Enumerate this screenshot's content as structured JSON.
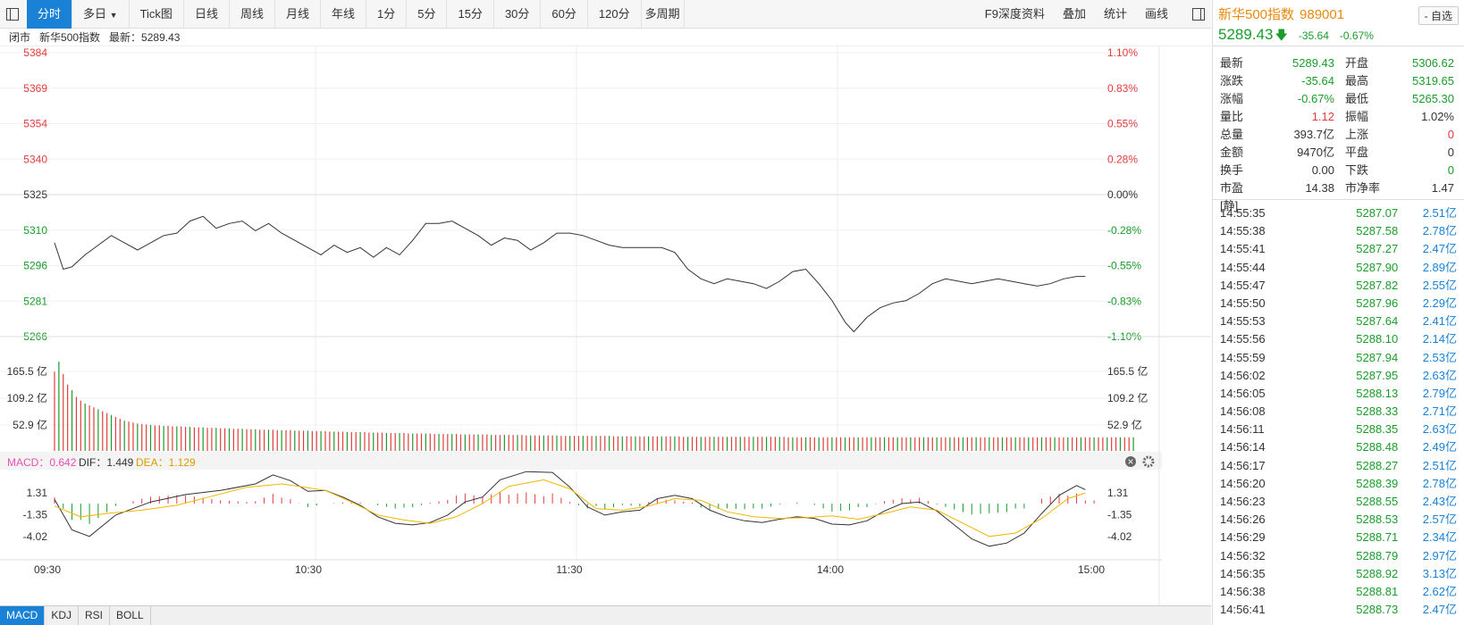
{
  "toolbar": {
    "tabs": [
      "分时",
      "多日",
      "Tick图",
      "日线",
      "周线",
      "月线",
      "年线",
      "1分",
      "5分",
      "15分",
      "30分",
      "60分",
      "120分",
      "多周期"
    ],
    "active_tab": "分时",
    "duori_arrow": "▼",
    "right_items": [
      "F9深度资料",
      "叠加",
      "统计",
      "画线"
    ]
  },
  "infobar": {
    "status": "闭市",
    "name": "新华500指数",
    "latest": "最新：5289.43"
  },
  "quote": {
    "name": "新华500指数",
    "code": "989001",
    "price": "5289.43",
    "arrow": "🡇",
    "change": "-35.64",
    "change_pct": "-0.67%",
    "add_button": "- 自选",
    "rows": [
      {
        "l1": "最新",
        "v1": "5289.43",
        "c1": "dn",
        "l2": "开盘",
        "v2": "5306.62",
        "c2": "dn"
      },
      {
        "l1": "涨跌",
        "v1": "-35.64",
        "c1": "dn",
        "l2": "最高",
        "v2": "5319.65",
        "c2": "dn"
      },
      {
        "l1": "涨幅",
        "v1": "-0.67%",
        "c1": "dn",
        "l2": "最低",
        "v2": "5265.30",
        "c2": "dn"
      },
      {
        "l1": "量比",
        "v1": "1.12",
        "c1": "up",
        "l2": "振幅",
        "v2": "1.02%",
        "c2": ""
      },
      {
        "l1": "总量",
        "v1": "393.7亿",
        "c1": "",
        "l2": "上涨",
        "v2": "0",
        "c2": "up"
      },
      {
        "l1": "金额",
        "v1": "9470亿",
        "c1": "",
        "l2": "平盘",
        "v2": "0",
        "c2": ""
      },
      {
        "l1": "换手",
        "v1": "0.00",
        "c1": "",
        "l2": "下跌",
        "v2": "0",
        "c2": "dn"
      },
      {
        "l1": "市盈[静]",
        "v1": "14.38",
        "c1": "",
        "l2": "市净率",
        "v2": "1.47",
        "c2": ""
      }
    ]
  },
  "ticks": [
    {
      "t": "14:55:35",
      "p": "5287.07",
      "v": "2.51亿"
    },
    {
      "t": "14:55:38",
      "p": "5287.58",
      "v": "2.78亿"
    },
    {
      "t": "14:55:41",
      "p": "5287.27",
      "v": "2.47亿"
    },
    {
      "t": "14:55:44",
      "p": "5287.90",
      "v": "2.89亿"
    },
    {
      "t": "14:55:47",
      "p": "5287.82",
      "v": "2.55亿"
    },
    {
      "t": "14:55:50",
      "p": "5287.96",
      "v": "2.29亿"
    },
    {
      "t": "14:55:53",
      "p": "5287.64",
      "v": "2.41亿"
    },
    {
      "t": "14:55:56",
      "p": "5288.10",
      "v": "2.14亿"
    },
    {
      "t": "14:55:59",
      "p": "5287.94",
      "v": "2.53亿"
    },
    {
      "t": "14:56:02",
      "p": "5287.95",
      "v": "2.63亿"
    },
    {
      "t": "14:56:05",
      "p": "5288.13",
      "v": "2.79亿"
    },
    {
      "t": "14:56:08",
      "p": "5288.33",
      "v": "2.71亿"
    },
    {
      "t": "14:56:11",
      "p": "5288.35",
      "v": "2.63亿"
    },
    {
      "t": "14:56:14",
      "p": "5288.48",
      "v": "2.49亿"
    },
    {
      "t": "14:56:17",
      "p": "5288.27",
      "v": "2.51亿"
    },
    {
      "t": "14:56:20",
      "p": "5288.39",
      "v": "2.78亿"
    },
    {
      "t": "14:56:23",
      "p": "5288.55",
      "v": "2.43亿"
    },
    {
      "t": "14:56:26",
      "p": "5288.53",
      "v": "2.57亿"
    },
    {
      "t": "14:56:29",
      "p": "5288.71",
      "v": "2.34亿"
    },
    {
      "t": "14:56:32",
      "p": "5288.79",
      "v": "2.97亿"
    },
    {
      "t": "14:56:35",
      "p": "5288.92",
      "v": "3.13亿"
    },
    {
      "t": "14:56:38",
      "p": "5288.81",
      "v": "2.62亿"
    },
    {
      "t": "14:56:41",
      "p": "5288.73",
      "v": "2.47亿"
    }
  ],
  "chart_data": {
    "type": "line",
    "price_ticks": [
      5384,
      5369,
      5354,
      5340,
      5325,
      5310,
      5296,
      5281,
      5266
    ],
    "pct_ticks": [
      "1.10%",
      "0.83%",
      "0.55%",
      "0.28%",
      "0.00%",
      "-0.28%",
      "-0.55%",
      "-0.83%",
      "-1.10%"
    ],
    "pct_colors": [
      "up",
      "up",
      "up",
      "up",
      "",
      "dn",
      "dn",
      "dn",
      "dn"
    ],
    "prev_close": 5325,
    "vol_ticks": [
      "165.5 亿",
      "109.2 亿",
      "52.9 亿"
    ],
    "time_labels": [
      "09:30",
      "10:30",
      "11:30",
      "14:00",
      "15:00"
    ],
    "price_points": [
      [
        0,
        5305
      ],
      [
        2,
        5294
      ],
      [
        4,
        5295
      ],
      [
        7,
        5300
      ],
      [
        10,
        5304
      ],
      [
        13,
        5308
      ],
      [
        16,
        5305
      ],
      [
        19,
        5302
      ],
      [
        22,
        5305
      ],
      [
        25,
        5308
      ],
      [
        28,
        5309
      ],
      [
        31,
        5314
      ],
      [
        34,
        5316
      ],
      [
        37,
        5311
      ],
      [
        40,
        5313
      ],
      [
        43,
        5314
      ],
      [
        46,
        5310
      ],
      [
        49,
        5313
      ],
      [
        52,
        5309
      ],
      [
        55,
        5306
      ],
      [
        58,
        5303
      ],
      [
        61,
        5300
      ],
      [
        64,
        5304
      ],
      [
        67,
        5301
      ],
      [
        70,
        5303
      ],
      [
        73,
        5299
      ],
      [
        76,
        5303
      ],
      [
        79,
        5300
      ],
      [
        82,
        5306
      ],
      [
        85,
        5313
      ],
      [
        88,
        5313
      ],
      [
        91,
        5314
      ],
      [
        94,
        5311
      ],
      [
        97,
        5308
      ],
      [
        100,
        5304
      ],
      [
        103,
        5307
      ],
      [
        106,
        5306
      ],
      [
        109,
        5302
      ],
      [
        112,
        5305
      ],
      [
        115,
        5309
      ],
      [
        118,
        5309
      ],
      [
        121,
        5308
      ],
      [
        124,
        5306
      ],
      [
        127,
        5304
      ],
      [
        130,
        5303
      ],
      [
        133,
        5303
      ],
      [
        136,
        5303
      ],
      [
        139,
        5303
      ],
      [
        142,
        5301
      ],
      [
        145,
        5294
      ],
      [
        148,
        5290
      ],
      [
        151,
        5288
      ],
      [
        154,
        5290
      ],
      [
        157,
        5289
      ],
      [
        160,
        5288
      ],
      [
        163,
        5286
      ],
      [
        166,
        5289
      ],
      [
        169,
        5293
      ],
      [
        172,
        5294
      ],
      [
        175,
        5288
      ],
      [
        178,
        5281
      ],
      [
        181,
        5272
      ],
      [
        183,
        5268
      ],
      [
        186,
        5274
      ],
      [
        189,
        5278
      ],
      [
        192,
        5280
      ],
      [
        195,
        5281
      ],
      [
        198,
        5284
      ],
      [
        201,
        5288
      ],
      [
        204,
        5290
      ],
      [
        207,
        5289
      ],
      [
        210,
        5288
      ],
      [
        213,
        5289
      ],
      [
        216,
        5290
      ],
      [
        219,
        5289
      ],
      [
        222,
        5288
      ],
      [
        225,
        5287
      ],
      [
        228,
        5288
      ],
      [
        231,
        5290
      ],
      [
        234,
        5291
      ],
      [
        236,
        5291
      ]
    ],
    "volume_values": [
      165,
      186,
      160,
      138,
      126,
      112,
      104,
      98,
      94,
      90,
      86,
      82,
      78,
      74,
      70,
      66,
      62,
      60,
      58,
      56,
      55,
      54,
      53,
      52,
      52,
      51,
      51,
      50,
      50,
      50,
      49,
      49,
      48,
      48,
      48,
      47,
      47,
      47,
      46,
      46,
      46,
      45,
      45,
      45,
      44,
      44,
      44,
      43,
      43,
      43,
      43,
      42,
      42,
      42,
      42,
      41,
      41,
      41,
      41,
      40,
      40,
      40,
      40,
      39,
      39,
      39,
      39,
      38,
      38,
      38,
      38,
      38,
      37,
      37,
      37,
      37,
      36,
      36,
      36,
      36,
      36,
      35,
      35,
      35,
      35,
      35,
      35,
      34,
      34,
      34,
      34,
      34,
      34,
      33,
      33,
      33,
      33,
      33,
      33,
      33,
      32,
      32,
      32,
      32,
      32,
      32,
      32,
      32,
      31,
      31,
      31,
      31,
      31,
      31,
      31,
      31,
      30,
      30,
      30,
      30,
      30,
      30,
      30,
      30,
      30,
      30,
      30,
      30,
      29,
      29,
      29,
      29,
      29,
      29,
      29,
      29,
      29,
      29,
      29,
      29,
      29,
      29,
      29,
      29,
      28,
      28,
      28,
      28,
      28,
      28,
      28,
      28,
      28,
      28,
      28,
      28,
      28,
      28,
      28,
      28,
      28,
      28,
      28,
      28,
      28,
      28,
      28,
      28,
      27,
      27,
      27,
      27,
      27,
      27,
      27,
      27,
      27,
      27,
      27,
      27,
      27,
      27,
      27,
      27,
      27,
      27,
      27,
      27,
      27,
      27,
      27,
      27,
      27,
      27,
      27,
      27,
      27,
      27,
      27,
      27,
      27,
      27,
      27,
      27,
      27,
      27,
      27,
      27,
      27,
      27,
      27,
      27,
      27,
      27,
      27,
      27,
      27,
      27,
      27,
      27,
      27,
      27,
      27,
      27,
      27,
      27,
      27,
      27,
      27,
      27,
      27,
      27,
      27,
      27,
      27,
      27,
      27,
      27,
      27,
      27,
      27,
      27,
      27,
      27,
      27,
      27,
      27,
      27
    ],
    "volume_marks": [
      5,
      1,
      8,
      4,
      3
    ],
    "macd": {
      "label_macd": "MACD：0.642",
      "label_dif": "DIF：1.449",
      "label_dea": "DEA：1.129",
      "ticks": [
        "1.31",
        "-1.35",
        "-4.02"
      ],
      "dif_points": [
        [
          0,
          0.5
        ],
        [
          4,
          -3.2
        ],
        [
          8,
          -4.0
        ],
        [
          14,
          -1.4
        ],
        [
          22,
          0.2
        ],
        [
          30,
          1.1
        ],
        [
          38,
          1.6
        ],
        [
          46,
          2.4
        ],
        [
          50,
          3.5
        ],
        [
          54,
          2.8
        ],
        [
          58,
          1.5
        ],
        [
          62,
          1.6
        ],
        [
          66,
          0.8
        ],
        [
          70,
          -0.2
        ],
        [
          74,
          -1.6
        ],
        [
          78,
          -2.4
        ],
        [
          82,
          -2.6
        ],
        [
          86,
          -2.3
        ],
        [
          90,
          -1.4
        ],
        [
          94,
          0.2
        ],
        [
          98,
          0.8
        ],
        [
          102,
          2.9
        ],
        [
          108,
          3.9
        ],
        [
          114,
          3.8
        ],
        [
          118,
          2.0
        ],
        [
          122,
          -0.4
        ],
        [
          126,
          -1.4
        ],
        [
          130,
          -1.0
        ],
        [
          134,
          -0.8
        ],
        [
          138,
          0.6
        ],
        [
          142,
          1.0
        ],
        [
          146,
          0.6
        ],
        [
          150,
          -0.8
        ],
        [
          154,
          -1.6
        ],
        [
          158,
          -2.1
        ],
        [
          162,
          -2.3
        ],
        [
          166,
          -1.9
        ],
        [
          170,
          -1.6
        ],
        [
          174,
          -1.8
        ],
        [
          178,
          -2.5
        ],
        [
          182,
          -2.6
        ],
        [
          186,
          -2.1
        ],
        [
          190,
          -0.9
        ],
        [
          194,
          0.0
        ],
        [
          198,
          0.2
        ],
        [
          202,
          -0.9
        ],
        [
          206,
          -2.6
        ],
        [
          210,
          -4.3
        ],
        [
          214,
          -5.2
        ],
        [
          218,
          -4.8
        ],
        [
          222,
          -3.6
        ],
        [
          226,
          -1.2
        ],
        [
          230,
          1.0
        ],
        [
          234,
          2.2
        ],
        [
          236,
          1.7
        ]
      ],
      "dea_points": [
        [
          0,
          -0.3
        ],
        [
          6,
          -1.6
        ],
        [
          12,
          -1.2
        ],
        [
          20,
          -0.8
        ],
        [
          28,
          -0.2
        ],
        [
          36,
          0.9
        ],
        [
          44,
          2.0
        ],
        [
          52,
          2.4
        ],
        [
          56,
          2.1
        ],
        [
          62,
          1.6
        ],
        [
          68,
          0.2
        ],
        [
          74,
          -1.4
        ],
        [
          80,
          -2.0
        ],
        [
          86,
          -2.4
        ],
        [
          92,
          -1.6
        ],
        [
          98,
          0.0
        ],
        [
          104,
          2.1
        ],
        [
          112,
          2.9
        ],
        [
          118,
          1.8
        ],
        [
          124,
          -0.6
        ],
        [
          130,
          -0.8
        ],
        [
          136,
          -0.3
        ],
        [
          142,
          0.6
        ],
        [
          148,
          0.4
        ],
        [
          154,
          -1.0
        ],
        [
          160,
          -1.6
        ],
        [
          166,
          -1.8
        ],
        [
          172,
          -1.7
        ],
        [
          178,
          -1.5
        ],
        [
          184,
          -1.9
        ],
        [
          190,
          -1.2
        ],
        [
          196,
          -0.4
        ],
        [
          202,
          -0.8
        ],
        [
          208,
          -2.4
        ],
        [
          214,
          -4.0
        ],
        [
          220,
          -3.6
        ],
        [
          226,
          -1.8
        ],
        [
          232,
          0.6
        ],
        [
          236,
          1.3
        ]
      ]
    }
  },
  "indicator_tabs": [
    "MACD",
    "KDJ",
    "RSI",
    "BOLL"
  ],
  "active_indicator": "MACD",
  "colors": {
    "up": "#e23c3c",
    "down": "#1a9c2a",
    "accent": "#1a82d6",
    "dif": "#333333",
    "dea": "#f2b600"
  }
}
